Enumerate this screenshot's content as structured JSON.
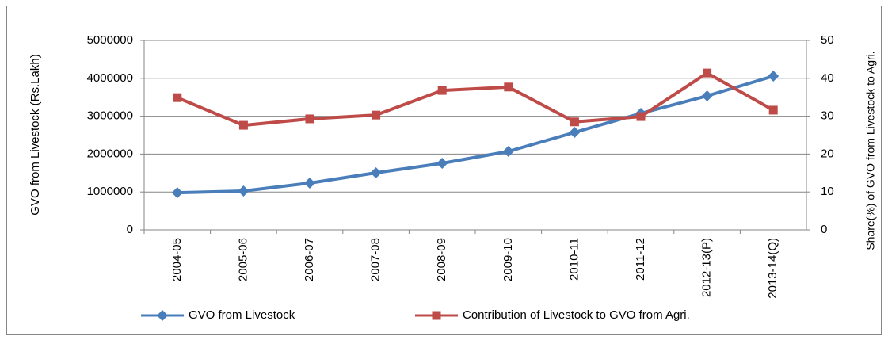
{
  "chart_data": {
    "type": "line",
    "ylabel": "GVO from Livestock (Rs.Lakh)",
    "y2label": "Share(%) of GVO from Livestock to Agri.",
    "categories": [
      "2004-05",
      "2005-06",
      "2006-07",
      "2007-08",
      "2008-09",
      "2009-10",
      "2010-11",
      "2011-12",
      "2012-13(P)",
      "2013-14(Q)"
    ],
    "series": [
      {
        "name": "GVO from Livestock",
        "color": "#4a7ebb",
        "marker": "diamond",
        "values": [
          980000,
          1025000,
          1235000,
          1506000,
          1757000,
          2071000,
          2573000,
          3075000,
          3536000,
          4059000
        ]
      },
      {
        "name": "Contribution of Livestock to GVO from Agri.",
        "color": "#be4b48",
        "marker": "square",
        "axis": "y2",
        "values": [
          34.9,
          27.6,
          29.3,
          30.3,
          36.8,
          37.7,
          28.5,
          29.9,
          41.4,
          31.6
        ]
      }
    ],
    "ylim": [
      0,
      5000000
    ],
    "yticks": [
      0,
      1000000,
      2000000,
      3000000,
      4000000,
      5000000
    ],
    "y2lim": [
      0,
      50
    ],
    "y2ticks": [
      0,
      10,
      20,
      30,
      40,
      50
    ],
    "grid": true,
    "legend": "bottom"
  }
}
